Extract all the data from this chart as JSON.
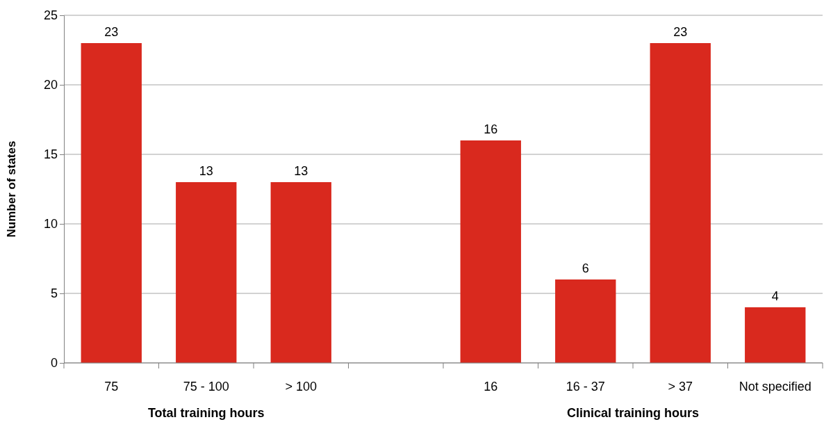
{
  "chart_data": {
    "type": "bar",
    "ylabel": "Number of states",
    "categories": [
      "75",
      "75 - 100",
      "> 100",
      null,
      "16",
      "16 - 37",
      "> 37",
      "Not specified"
    ],
    "values": [
      23,
      13,
      13,
      null,
      16,
      6,
      23,
      4
    ],
    "color": "#d9291e",
    "ylim": [
      0,
      25
    ],
    "yticks": [
      0,
      5,
      10,
      15,
      20,
      25
    ],
    "grid": "y",
    "data_labels": true,
    "annotations": [
      "Total training hours",
      "Clinical training hours"
    ]
  }
}
